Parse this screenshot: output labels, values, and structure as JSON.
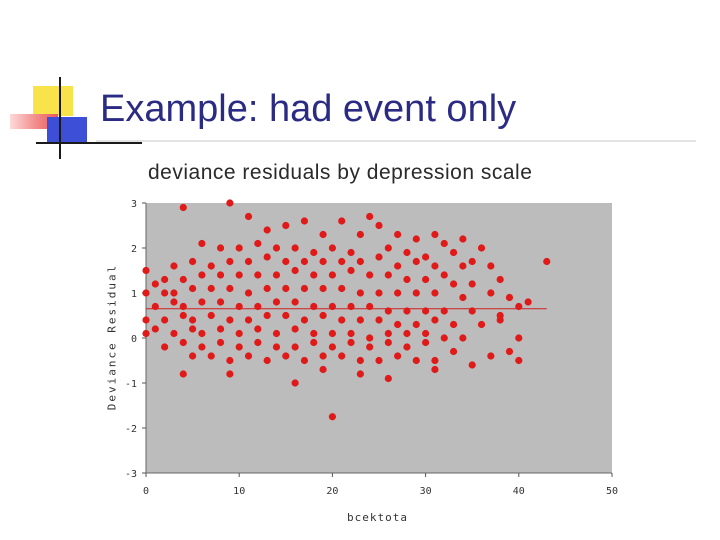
{
  "slide": {
    "title": "Example: had event only"
  },
  "chart_data": {
    "type": "scatter",
    "title": "deviance residuals by depression scale",
    "xlabel": "bcektota",
    "ylabel": "Deviance Residual",
    "xlim": [
      0,
      50
    ],
    "ylim": [
      -3,
      3
    ],
    "xticks": [
      "0",
      "10",
      "20",
      "30",
      "40",
      "50"
    ],
    "yticks": [
      "3",
      "2",
      "1",
      "0",
      "-1",
      "-2",
      "-3"
    ],
    "grid": false,
    "colors": {
      "points": "#e01919",
      "plot_background": "#bcbcbc",
      "reference_line": "#cc2020"
    },
    "reference_line": {
      "x": [
        0,
        43
      ],
      "y": [
        0.65,
        0.65
      ]
    },
    "points": [
      [
        4,
        2.9
      ],
      [
        9,
        3.0
      ],
      [
        0,
        1.5
      ],
      [
        11,
        2.7
      ],
      [
        13,
        2.4
      ],
      [
        15,
        2.5
      ],
      [
        17,
        2.6
      ],
      [
        19,
        2.3
      ],
      [
        21,
        2.6
      ],
      [
        23,
        2.3
      ],
      [
        24,
        2.7
      ],
      [
        25,
        2.5
      ],
      [
        27,
        2.3
      ],
      [
        29,
        2.2
      ],
      [
        31,
        2.3
      ],
      [
        32,
        2.1
      ],
      [
        34,
        2.2
      ],
      [
        36,
        2.0
      ],
      [
        43,
        1.7
      ],
      [
        6,
        2.1
      ],
      [
        8,
        2.0
      ],
      [
        10,
        2.0
      ],
      [
        12,
        2.1
      ],
      [
        14,
        2.0
      ],
      [
        16,
        2.0
      ],
      [
        18,
        1.9
      ],
      [
        20,
        2.0
      ],
      [
        22,
        1.9
      ],
      [
        26,
        2.0
      ],
      [
        28,
        1.9
      ],
      [
        30,
        1.8
      ],
      [
        33,
        1.9
      ],
      [
        35,
        1.7
      ],
      [
        3,
        1.6
      ],
      [
        5,
        1.7
      ],
      [
        7,
        1.6
      ],
      [
        9,
        1.7
      ],
      [
        11,
        1.7
      ],
      [
        13,
        1.8
      ],
      [
        15,
        1.7
      ],
      [
        17,
        1.7
      ],
      [
        19,
        1.7
      ],
      [
        21,
        1.7
      ],
      [
        23,
        1.7
      ],
      [
        25,
        1.8
      ],
      [
        27,
        1.6
      ],
      [
        29,
        1.7
      ],
      [
        31,
        1.6
      ],
      [
        34,
        1.6
      ],
      [
        37,
        1.6
      ],
      [
        1,
        1.2
      ],
      [
        2,
        1.3
      ],
      [
        4,
        1.3
      ],
      [
        6,
        1.4
      ],
      [
        8,
        1.4
      ],
      [
        10,
        1.4
      ],
      [
        12,
        1.4
      ],
      [
        14,
        1.4
      ],
      [
        16,
        1.5
      ],
      [
        18,
        1.4
      ],
      [
        20,
        1.4
      ],
      [
        22,
        1.5
      ],
      [
        24,
        1.4
      ],
      [
        26,
        1.4
      ],
      [
        28,
        1.3
      ],
      [
        30,
        1.3
      ],
      [
        32,
        1.4
      ],
      [
        33,
        1.2
      ],
      [
        35,
        1.2
      ],
      [
        38,
        1.3
      ],
      [
        0,
        1.0
      ],
      [
        2,
        1.0
      ],
      [
        3,
        1.0
      ],
      [
        5,
        1.1
      ],
      [
        7,
        1.1
      ],
      [
        9,
        1.1
      ],
      [
        11,
        1.0
      ],
      [
        13,
        1.1
      ],
      [
        15,
        1.1
      ],
      [
        17,
        1.1
      ],
      [
        19,
        1.1
      ],
      [
        21,
        1.1
      ],
      [
        23,
        1.0
      ],
      [
        25,
        1.0
      ],
      [
        27,
        1.0
      ],
      [
        29,
        1.0
      ],
      [
        31,
        1.0
      ],
      [
        34,
        0.9
      ],
      [
        37,
        1.0
      ],
      [
        39,
        0.9
      ],
      [
        41,
        0.8
      ],
      [
        1,
        0.7
      ],
      [
        3,
        0.8
      ],
      [
        4,
        0.7
      ],
      [
        6,
        0.8
      ],
      [
        8,
        0.8
      ],
      [
        10,
        0.7
      ],
      [
        12,
        0.7
      ],
      [
        14,
        0.8
      ],
      [
        16,
        0.8
      ],
      [
        18,
        0.7
      ],
      [
        20,
        0.7
      ],
      [
        22,
        0.7
      ],
      [
        24,
        0.7
      ],
      [
        26,
        0.6
      ],
      [
        28,
        0.6
      ],
      [
        30,
        0.6
      ],
      [
        32,
        0.6
      ],
      [
        35,
        0.6
      ],
      [
        38,
        0.5
      ],
      [
        40,
        0.7
      ],
      [
        0,
        0.4
      ],
      [
        2,
        0.4
      ],
      [
        4,
        0.5
      ],
      [
        5,
        0.4
      ],
      [
        7,
        0.5
      ],
      [
        9,
        0.4
      ],
      [
        11,
        0.4
      ],
      [
        13,
        0.5
      ],
      [
        15,
        0.5
      ],
      [
        17,
        0.4
      ],
      [
        19,
        0.5
      ],
      [
        21,
        0.4
      ],
      [
        23,
        0.4
      ],
      [
        25,
        0.4
      ],
      [
        27,
        0.3
      ],
      [
        29,
        0.3
      ],
      [
        31,
        0.4
      ],
      [
        33,
        0.3
      ],
      [
        36,
        0.3
      ],
      [
        38,
        0.4
      ],
      [
        0,
        0.1
      ],
      [
        1,
        0.2
      ],
      [
        3,
        0.1
      ],
      [
        5,
        0.2
      ],
      [
        6,
        0.1
      ],
      [
        8,
        0.2
      ],
      [
        10,
        0.1
      ],
      [
        12,
        0.2
      ],
      [
        14,
        0.1
      ],
      [
        16,
        0.2
      ],
      [
        18,
        0.1
      ],
      [
        20,
        0.1
      ],
      [
        22,
        0.1
      ],
      [
        24,
        0.0
      ],
      [
        26,
        0.1
      ],
      [
        28,
        0.1
      ],
      [
        30,
        0.1
      ],
      [
        32,
        0.0
      ],
      [
        34,
        0.0
      ],
      [
        40,
        0.0
      ],
      [
        2,
        -0.2
      ],
      [
        4,
        -0.1
      ],
      [
        6,
        -0.2
      ],
      [
        8,
        -0.1
      ],
      [
        10,
        -0.2
      ],
      [
        12,
        -0.1
      ],
      [
        14,
        -0.2
      ],
      [
        16,
        -0.2
      ],
      [
        18,
        -0.1
      ],
      [
        20,
        -0.2
      ],
      [
        22,
        -0.1
      ],
      [
        24,
        -0.2
      ],
      [
        26,
        -0.1
      ],
      [
        28,
        -0.2
      ],
      [
        30,
        -0.1
      ],
      [
        33,
        -0.3
      ],
      [
        37,
        -0.4
      ],
      [
        39,
        -0.3
      ],
      [
        5,
        -0.4
      ],
      [
        7,
        -0.4
      ],
      [
        9,
        -0.5
      ],
      [
        11,
        -0.4
      ],
      [
        13,
        -0.5
      ],
      [
        15,
        -0.4
      ],
      [
        17,
        -0.5
      ],
      [
        19,
        -0.4
      ],
      [
        21,
        -0.4
      ],
      [
        23,
        -0.5
      ],
      [
        25,
        -0.5
      ],
      [
        27,
        -0.4
      ],
      [
        29,
        -0.5
      ],
      [
        31,
        -0.5
      ],
      [
        40,
        -0.5
      ],
      [
        4,
        -0.8
      ],
      [
        9,
        -0.8
      ],
      [
        16,
        -1.0
      ],
      [
        19,
        -0.7
      ],
      [
        23,
        -0.8
      ],
      [
        26,
        -0.9
      ],
      [
        31,
        -0.7
      ],
      [
        35,
        -0.6
      ],
      [
        20,
        -1.75
      ]
    ]
  }
}
